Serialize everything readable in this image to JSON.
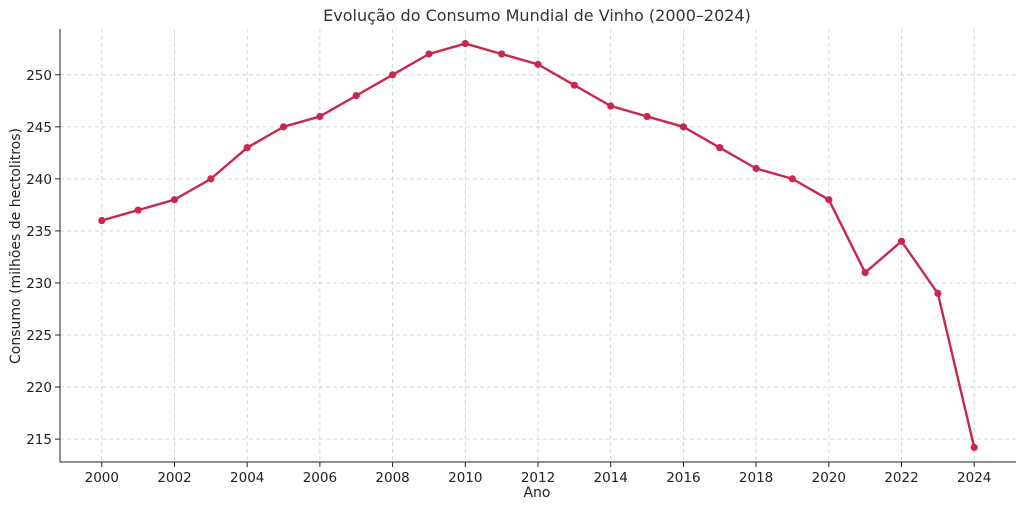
{
  "chart_data": {
    "type": "line",
    "title": "Evolução do Consumo Mundial de Vinho (2000–2024)",
    "xlabel": "Ano",
    "ylabel": "Consumo (milhões de hectolitros)",
    "x": [
      2000,
      2001,
      2002,
      2003,
      2004,
      2005,
      2006,
      2007,
      2008,
      2009,
      2010,
      2011,
      2012,
      2013,
      2014,
      2015,
      2016,
      2017,
      2018,
      2019,
      2020,
      2021,
      2022,
      2023,
      2024
    ],
    "series": [
      {
        "values": [
          236,
          237,
          238,
          240,
          243,
          245,
          246,
          248,
          250,
          252,
          253,
          252,
          251,
          249,
          247,
          246,
          245,
          243,
          241,
          240,
          238,
          231,
          234,
          229,
          214.2
        ],
        "color": "#c8274f",
        "marker": "circle"
      }
    ],
    "xticks": [
      2000,
      2002,
      2004,
      2006,
      2008,
      2010,
      2012,
      2014,
      2016,
      2018,
      2020,
      2022,
      2024
    ],
    "yticks": [
      215,
      220,
      225,
      230,
      235,
      240,
      245,
      250
    ],
    "xlim": [
      1998.85,
      2025.15
    ],
    "ylim": [
      212.8,
      254.4
    ],
    "grid": true,
    "legend": "none"
  }
}
